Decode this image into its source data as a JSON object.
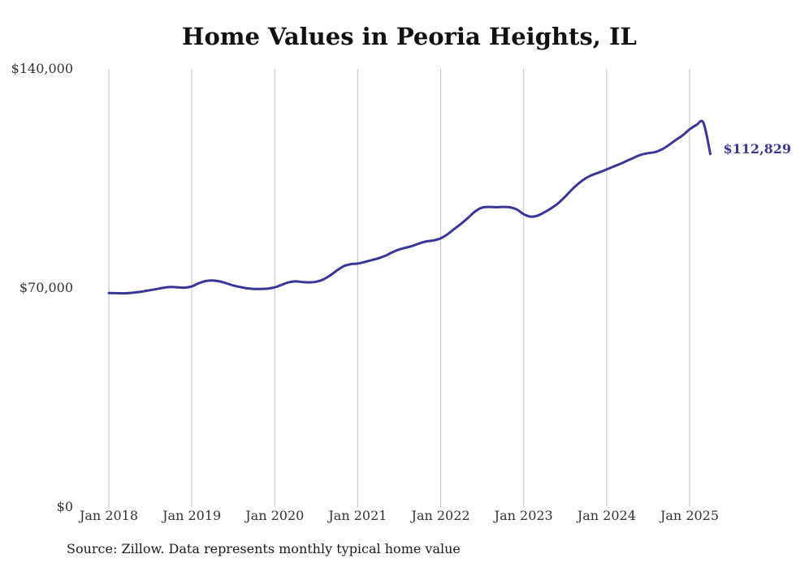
{
  "chart_data": {
    "type": "line",
    "title": "Home Values in Peoria Heights, IL",
    "xlabel": "",
    "ylabel": "",
    "ylim": [
      0,
      140000
    ],
    "yticks": [
      0,
      70000,
      140000
    ],
    "ytick_labels": [
      "$0",
      "$70,000",
      "$140,000"
    ],
    "xticks": [
      "2018-01",
      "2019-01",
      "2020-01",
      "2021-01",
      "2022-01",
      "2023-01",
      "2024-01",
      "2025-01"
    ],
    "xtick_labels": [
      "Jan 2018",
      "Jan 2019",
      "Jan 2020",
      "Jan 2021",
      "Jan 2022",
      "Jan 2023",
      "Jan 2024",
      "Jan 2025"
    ],
    "grid": "vertical",
    "line_color": "#3a3699",
    "end_label": "$112,829",
    "series": [
      {
        "x": [
          "2018-01",
          "2018-02",
          "2018-03",
          "2018-04",
          "2018-05",
          "2018-06",
          "2018-07",
          "2018-08",
          "2018-09",
          "2018-10",
          "2018-11",
          "2018-12",
          "2019-01",
          "2019-02",
          "2019-03",
          "2019-04",
          "2019-05",
          "2019-06",
          "2019-07",
          "2019-08",
          "2019-09",
          "2019-10",
          "2019-11",
          "2019-12",
          "2020-01",
          "2020-02",
          "2020-03",
          "2020-04",
          "2020-05",
          "2020-06",
          "2020-07",
          "2020-08",
          "2020-09",
          "2020-10",
          "2020-11",
          "2020-12",
          "2021-01",
          "2021-02",
          "2021-03",
          "2021-04",
          "2021-05",
          "2021-06",
          "2021-07",
          "2021-08",
          "2021-09",
          "2021-10",
          "2021-11",
          "2021-12",
          "2022-01",
          "2022-02",
          "2022-03",
          "2022-04",
          "2022-05",
          "2022-06",
          "2022-07",
          "2022-08",
          "2022-09",
          "2022-10",
          "2022-11",
          "2022-12",
          "2023-01",
          "2023-02",
          "2023-03",
          "2023-04",
          "2023-05",
          "2023-06",
          "2023-07",
          "2023-08",
          "2023-09",
          "2023-10",
          "2023-11",
          "2023-12",
          "2024-01",
          "2024-02",
          "2024-03",
          "2024-04",
          "2024-05",
          "2024-06",
          "2024-07",
          "2024-08",
          "2024-09",
          "2024-10",
          "2024-11",
          "2024-12",
          "2025-01",
          "2025-02",
          "2025-03",
          "2025-04"
        ],
        "values": [
          68400,
          68350,
          68300,
          68400,
          68600,
          68900,
          69300,
          69700,
          70100,
          70300,
          70200,
          70100,
          70500,
          71500,
          72200,
          72400,
          72100,
          71500,
          70800,
          70300,
          69900,
          69700,
          69700,
          69800,
          70200,
          71000,
          71800,
          72100,
          71900,
          71800,
          72000,
          72700,
          74000,
          75600,
          77000,
          77600,
          77800,
          78300,
          78900,
          79500,
          80300,
          81400,
          82300,
          82900,
          83500,
          84300,
          84900,
          85200,
          85900,
          87200,
          88900,
          90600,
          92500,
          94500,
          95700,
          95900,
          95800,
          95900,
          95800,
          95100,
          93600,
          92800,
          93100,
          94200,
          95500,
          97100,
          99200,
          101500,
          103500,
          105100,
          106200,
          107000,
          107900,
          108800,
          109700,
          110700,
          111700,
          112600,
          113100,
          113400,
          114300,
          115700,
          117300,
          118800,
          120700,
          122100,
          122800,
          112829
        ]
      }
    ]
  },
  "source": "Source: Zillow. Data represents monthly typical home value"
}
